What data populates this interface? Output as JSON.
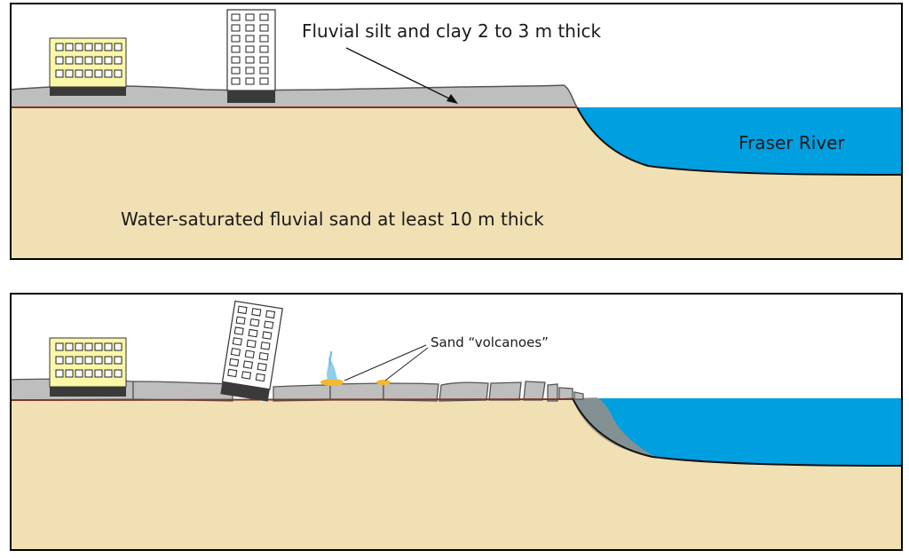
{
  "top_panel": {
    "label_silt": "Fluvial silt and clay 2 to 3 m thick",
    "label_river": "Fraser River",
    "label_sand": "Water-saturated fluvial sand at least 10 m thick"
  },
  "bottom_panel": {
    "label_volcanoes": "Sand “volcanoes”"
  },
  "colors": {
    "sand": "#F0E0B4",
    "silt": "#BEBEBE",
    "water": "#009FE0",
    "building_cream": "#FBF7A8",
    "building_base": "#3A3A3A",
    "frame": "#000000"
  }
}
